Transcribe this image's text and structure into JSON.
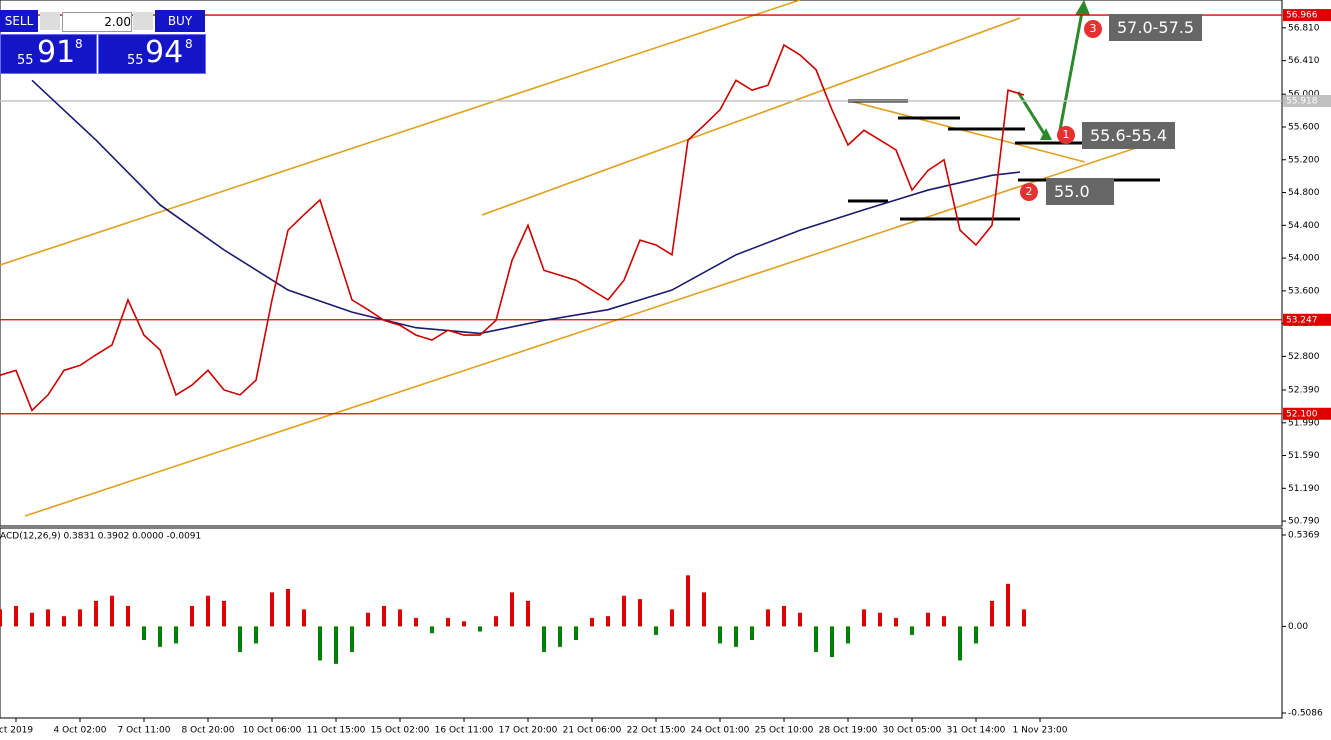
{
  "panel": {
    "sell": "SELL",
    "buy": "BUY",
    "lots": "2.00",
    "sell_big": "55",
    "sell_mid": "91",
    "sell_small": "8",
    "buy_big": "55",
    "buy_mid": "94",
    "buy_small": "8"
  },
  "annotations": [
    {
      "num": "1",
      "text": "55.6-55.4"
    },
    {
      "num": "2",
      "text": "55.0"
    },
    {
      "num": "3",
      "text": "57.0-57.5"
    }
  ],
  "chart_data": {
    "type": "line",
    "color": "#cc0000",
    "x": [
      0,
      1,
      2,
      3,
      4,
      5,
      6,
      7,
      8,
      9,
      10,
      11,
      12,
      13,
      14,
      15,
      16,
      17,
      18,
      19,
      20,
      21,
      22,
      23,
      24,
      25,
      26,
      27,
      28,
      29,
      30,
      31,
      32,
      33,
      34,
      35,
      36,
      37,
      38,
      39,
      40,
      41,
      42,
      43,
      44,
      45,
      46,
      47,
      48,
      49,
      50,
      51,
      52,
      53,
      54,
      55,
      56,
      57,
      58,
      59,
      60,
      61,
      62,
      63,
      64
    ],
    "values": [
      52.57,
      52.63,
      52.14,
      52.33,
      52.63,
      52.69,
      52.82,
      52.94,
      53.49,
      53.06,
      52.88,
      52.33,
      52.45,
      52.63,
      52.39,
      52.33,
      52.51,
      53.49,
      54.34,
      54.53,
      54.71,
      54.1,
      53.49,
      53.37,
      53.24,
      53.18,
      53.06,
      53.0,
      53.12,
      53.06,
      53.06,
      53.24,
      53.97,
      54.4,
      53.85,
      53.79,
      53.73,
      53.61,
      53.49,
      53.73,
      54.22,
      54.16,
      54.04,
      55.44,
      55.62,
      55.81,
      56.17,
      56.05,
      56.11,
      56.6,
      56.48,
      56.3,
      55.81,
      55.38,
      55.56,
      55.44,
      55.32,
      54.83,
      55.07,
      55.2,
      54.34,
      54.16,
      54.4,
      56.05,
      55.99
    ],
    "ma": {
      "color": "#1a1a6e",
      "x": [
        2,
        6,
        10,
        14,
        18,
        22,
        26,
        30,
        34,
        38,
        42,
        46,
        50,
        54,
        58,
        62,
        63.75
      ],
      "values": [
        56.17,
        55.44,
        54.65,
        54.1,
        53.61,
        53.34,
        53.15,
        53.08,
        53.24,
        53.37,
        53.61,
        54.04,
        54.34,
        54.59,
        54.83,
        55.01,
        55.05
      ]
    },
    "xlim": [
      0,
      80.125
    ],
    "ylim": [
      50.73,
      57.15
    ],
    "yticks": [
      {
        "value": 56.81,
        "label": "56.810"
      },
      {
        "value": 56.41,
        "label": "56.410"
      },
      {
        "value": 56.0,
        "label": "56.000"
      },
      {
        "value": 55.6,
        "label": "55.600"
      },
      {
        "value": 55.2,
        "label": "55.200"
      },
      {
        "value": 54.8,
        "label": "54.800"
      },
      {
        "value": 54.4,
        "label": "54.400"
      },
      {
        "value": 54.0,
        "label": "54.000"
      },
      {
        "value": 53.6,
        "label": "53.600"
      },
      {
        "value": 53.2,
        "label": "53.200"
      },
      {
        "value": 52.8,
        "label": "52.800"
      },
      {
        "value": 52.39,
        "label": "52.390"
      },
      {
        "value": 51.99,
        "label": "51.990"
      },
      {
        "value": 51.59,
        "label": "51.590"
      },
      {
        "value": 51.19,
        "label": "51.190"
      },
      {
        "value": 50.79,
        "label": "50.790"
      }
    ],
    "xticks": [
      {
        "value": 1,
        "label": "ct 2019"
      },
      {
        "value": 5,
        "label": "4 Oct 02:00"
      },
      {
        "value": 9,
        "label": "7 Oct 11:00"
      },
      {
        "value": 13,
        "label": "8 Oct 20:00"
      },
      {
        "value": 17,
        "label": "10 Oct 06:00"
      },
      {
        "value": 21,
        "label": "11 Oct 15:00"
      },
      {
        "value": 25,
        "label": "15 Oct 02:00"
      },
      {
        "value": 29,
        "label": "16 Oct 11:00"
      },
      {
        "value": 33,
        "label": "17 Oct 20:00"
      },
      {
        "value": 37,
        "label": "21 Oct 06:00"
      },
      {
        "value": 41,
        "label": "22 Oct 15:00"
      },
      {
        "value": 45,
        "label": "24 Oct 01:00"
      },
      {
        "value": 49,
        "label": "25 Oct 10:00"
      },
      {
        "value": 53,
        "label": "28 Oct 19:00"
      },
      {
        "value": 57,
        "label": "30 Oct 05:00"
      },
      {
        "value": 61,
        "label": "31 Oct 14:00"
      },
      {
        "value": 65,
        "label": "1 Nov 23:00"
      }
    ],
    "levels": [
      {
        "value": 56.966,
        "color": "#e00000"
      },
      {
        "value": 53.247,
        "color": "#e00000"
      },
      {
        "value": {
          "value": 52.1,
          "label": "52.100"
        },
        "color": "#e00000"
      },
      {
        "value": 55.918,
        "color": "#c0c0c0"
      }
    ],
    "macd": {
      "title": "ACD(12,26,9) 0.3831 0.3902 0.0000 -0.0091",
      "pos_color": "#e00000",
      "neg_color": "#008000",
      "values": [
        0.1,
        0.12,
        0.08,
        0.1,
        0.06,
        0.1,
        0.15,
        0.18,
        0.12,
        -0.08,
        -0.12,
        -0.1,
        0.12,
        0.18,
        0.15,
        -0.15,
        -0.1,
        0.2,
        0.22,
        0.1,
        -0.2,
        -0.22,
        -0.15,
        0.08,
        0.12,
        0.1,
        0.05,
        -0.04,
        0.05,
        0.03,
        -0.03,
        0.06,
        0.2,
        0.15,
        -0.15,
        -0.12,
        -0.08,
        0.05,
        0.06,
        0.18,
        0.16,
        -0.05,
        0.1,
        0.3,
        0.2,
        -0.1,
        -0.12,
        -0.08,
        0.1,
        0.12,
        0.08,
        -0.15,
        -0.18,
        -0.1,
        0.1,
        0.08,
        0.05,
        -0.05,
        0.08,
        0.06,
        -0.2,
        -0.1,
        0.15,
        0.25,
        0.1
      ],
      "ylim": [
        -0.538,
        0.578
      ],
      "yticks": [
        {
          "value": 0.5369,
          "label": "0.5369"
        },
        {
          "value": 0,
          "label": "0.00"
        },
        {
          "value": -0.5086,
          "label": "-0.5086"
        }
      ]
    }
  }
}
